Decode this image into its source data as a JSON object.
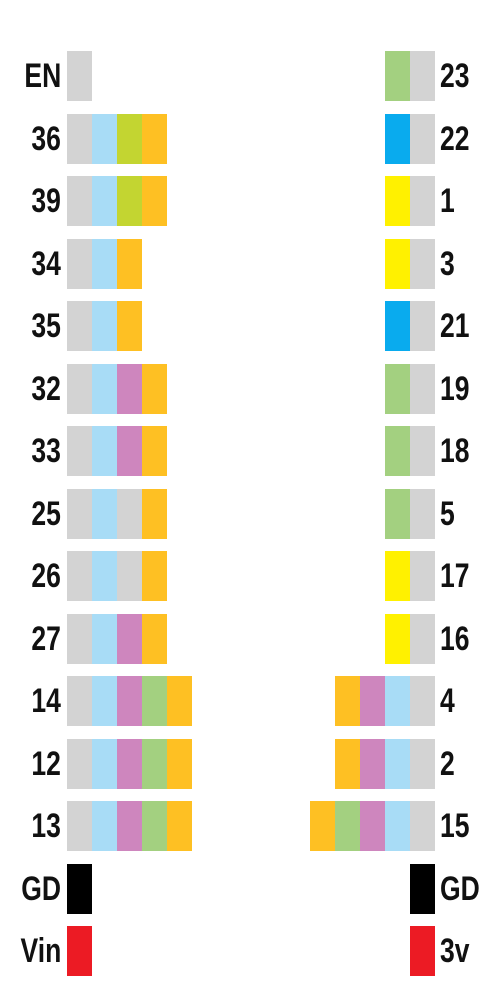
{
  "colors": {
    "gray": "#d3d3d3",
    "lightblue": "#a8dcf6",
    "lime": "#c3d531",
    "orange": "#fec023",
    "pink": "#ce86be",
    "green": "#a3d080",
    "blue": "#09abee",
    "yellow": "#fff100",
    "black": "#000000",
    "red": "#ec1b24"
  },
  "left_pins": [
    {
      "label": "EN",
      "boxes": [
        "gray"
      ]
    },
    {
      "label": "36",
      "boxes": [
        "gray",
        "lightblue",
        "lime",
        "orange"
      ]
    },
    {
      "label": "39",
      "boxes": [
        "gray",
        "lightblue",
        "lime",
        "orange"
      ]
    },
    {
      "label": "34",
      "boxes": [
        "gray",
        "lightblue",
        "orange"
      ]
    },
    {
      "label": "35",
      "boxes": [
        "gray",
        "lightblue",
        "orange"
      ]
    },
    {
      "label": "32",
      "boxes": [
        "gray",
        "lightblue",
        "pink",
        "orange"
      ]
    },
    {
      "label": "33",
      "boxes": [
        "gray",
        "lightblue",
        "pink",
        "orange"
      ]
    },
    {
      "label": "25",
      "boxes": [
        "gray",
        "lightblue",
        "gray",
        "orange"
      ]
    },
    {
      "label": "26",
      "boxes": [
        "gray",
        "lightblue",
        "gray",
        "orange"
      ]
    },
    {
      "label": "27",
      "boxes": [
        "gray",
        "lightblue",
        "pink",
        "orange"
      ]
    },
    {
      "label": "14",
      "boxes": [
        "gray",
        "lightblue",
        "pink",
        "green",
        "orange"
      ]
    },
    {
      "label": "12",
      "boxes": [
        "gray",
        "lightblue",
        "pink",
        "green",
        "orange"
      ]
    },
    {
      "label": "13",
      "boxes": [
        "gray",
        "lightblue",
        "pink",
        "green",
        "orange"
      ]
    },
    {
      "label": "GD",
      "boxes": [
        "black"
      ]
    },
    {
      "label": "Vin",
      "boxes": [
        "red"
      ]
    }
  ],
  "right_pins": [
    {
      "label": "23",
      "boxes": [
        "gray",
        "green"
      ]
    },
    {
      "label": "22",
      "boxes": [
        "gray",
        "blue"
      ]
    },
    {
      "label": "1",
      "boxes": [
        "gray",
        "yellow"
      ]
    },
    {
      "label": "3",
      "boxes": [
        "gray",
        "yellow"
      ]
    },
    {
      "label": "21",
      "boxes": [
        "gray",
        "blue"
      ]
    },
    {
      "label": "19",
      "boxes": [
        "gray",
        "green"
      ]
    },
    {
      "label": "18",
      "boxes": [
        "gray",
        "green"
      ]
    },
    {
      "label": "5",
      "boxes": [
        "gray",
        "green"
      ]
    },
    {
      "label": "17",
      "boxes": [
        "gray",
        "yellow"
      ]
    },
    {
      "label": "16",
      "boxes": [
        "gray",
        "yellow"
      ]
    },
    {
      "label": "4",
      "boxes": [
        "gray",
        "lightblue",
        "pink",
        "orange"
      ]
    },
    {
      "label": "2",
      "boxes": [
        "gray",
        "lightblue",
        "pink",
        "orange"
      ]
    },
    {
      "label": "15",
      "boxes": [
        "gray",
        "lightblue",
        "pink",
        "green",
        "orange"
      ]
    },
    {
      "label": "GD",
      "boxes": [
        "black"
      ]
    },
    {
      "label": "3v",
      "boxes": [
        "red"
      ]
    }
  ]
}
